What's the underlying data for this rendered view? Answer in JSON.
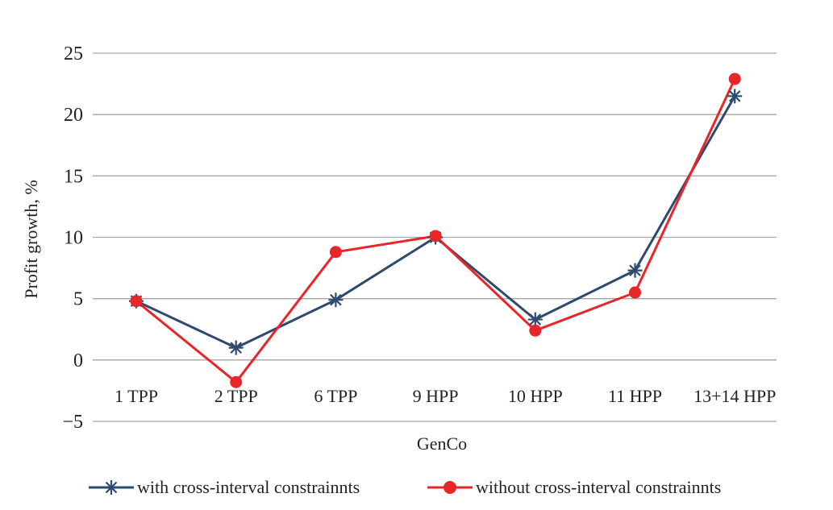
{
  "chart_data": {
    "type": "line",
    "title": "",
    "xlabel": "GenCo",
    "ylabel": "Profit growth, %",
    "categories": [
      "1 TPP",
      "2 TPP",
      "6 TPP",
      "9 HPP",
      "10 HPP",
      "11 HPP",
      "13+14 HPP"
    ],
    "ylim": [
      -5,
      25
    ],
    "yticks": [
      25,
      20,
      15,
      10,
      5,
      0,
      -5
    ],
    "ytick_labels": [
      "25",
      "20",
      "15",
      "10",
      "5",
      "0",
      "−5"
    ],
    "grid": true,
    "legend_position": "bottom",
    "series": [
      {
        "name": "with cross-interval constrainnts",
        "color": "#2e4a6e",
        "marker": "asterisk",
        "values": [
          4.8,
          1.0,
          4.9,
          10.0,
          3.3,
          7.3,
          21.5
        ]
      },
      {
        "name": "without cross-interval constrainnts",
        "color": "#e8262a",
        "marker": "circle",
        "values": [
          4.8,
          -1.8,
          8.8,
          10.1,
          2.4,
          5.5,
          22.9
        ]
      }
    ]
  }
}
